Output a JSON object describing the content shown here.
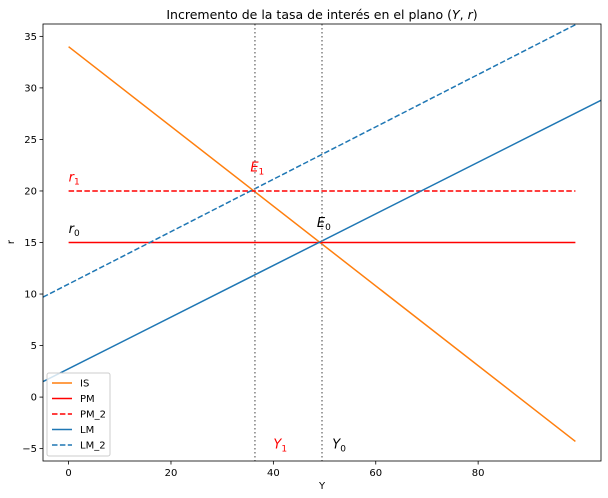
{
  "chart_data": {
    "type": "line",
    "title": "Incremento de la tasa de interés en el plano (Y, r)",
    "title_parts": [
      "Incremento de la tasa de interés en el plano (",
      "Y",
      ", ",
      "r",
      ")"
    ],
    "xlabel": "Y",
    "ylabel": "r",
    "xlim": [
      -5,
      104
    ],
    "ylim": [
      -6.2,
      36.2
    ],
    "xticks": [
      0,
      20,
      40,
      60,
      80
    ],
    "yticks": [
      -5,
      0,
      5,
      10,
      15,
      20,
      25,
      30,
      35
    ],
    "xtick_labels": [
      "0",
      "20",
      "40",
      "60",
      "80"
    ],
    "ytick_labels": [
      "−5",
      "0",
      "5",
      "10",
      "15",
      "20",
      "25",
      "30",
      "35"
    ],
    "grid": false,
    "legend_position": "lower-left",
    "series": [
      {
        "name": "IS",
        "color": "#ff7f0e",
        "style": "solid",
        "points": [
          [
            0,
            34
          ],
          [
            99,
            -4.3
          ]
        ]
      },
      {
        "name": "PM",
        "color": "#ff0000",
        "style": "solid",
        "points": [
          [
            0,
            15
          ],
          [
            99,
            15
          ]
        ]
      },
      {
        "name": "PM_2",
        "color": "#ff0000",
        "style": "dashed",
        "points": [
          [
            0,
            20
          ],
          [
            99,
            20
          ]
        ]
      },
      {
        "name": "LM",
        "color": "#1f77b4",
        "style": "solid",
        "points": [
          [
            -5,
            1.5
          ],
          [
            104,
            28.8
          ]
        ]
      },
      {
        "name": "LM_2",
        "color": "#1f77b4",
        "style": "dashed",
        "points": [
          [
            -5,
            9.7
          ],
          [
            104,
            37.4
          ]
        ]
      }
    ],
    "vlines": [
      {
        "x": 36.4,
        "color": "#808080",
        "style": "dotted"
      },
      {
        "x": 49.5,
        "color": "#808080",
        "style": "dotted"
      }
    ],
    "annotations": [
      {
        "id": "r1",
        "base": "r",
        "sub": "1",
        "x": 0,
        "y": 20.9,
        "color": "#ff0000"
      },
      {
        "id": "r0",
        "base": "r",
        "sub": "0",
        "x": 0,
        "y": 15.9,
        "color": "#000000"
      },
      {
        "id": "E1",
        "base": "E",
        "sub": "1",
        "x": 35.5,
        "y": 21.9,
        "color": "#ff0000"
      },
      {
        "id": "E0",
        "base": "E",
        "sub": "0",
        "x": 48.5,
        "y": 16.5,
        "color": "#000000"
      },
      {
        "id": "Y1",
        "base": "Y",
        "sub": "1",
        "x": 40,
        "y": -5,
        "color": "#ff0000"
      },
      {
        "id": "Y0",
        "base": "Y",
        "sub": "0",
        "x": 51.5,
        "y": -5,
        "color": "#000000"
      }
    ]
  }
}
